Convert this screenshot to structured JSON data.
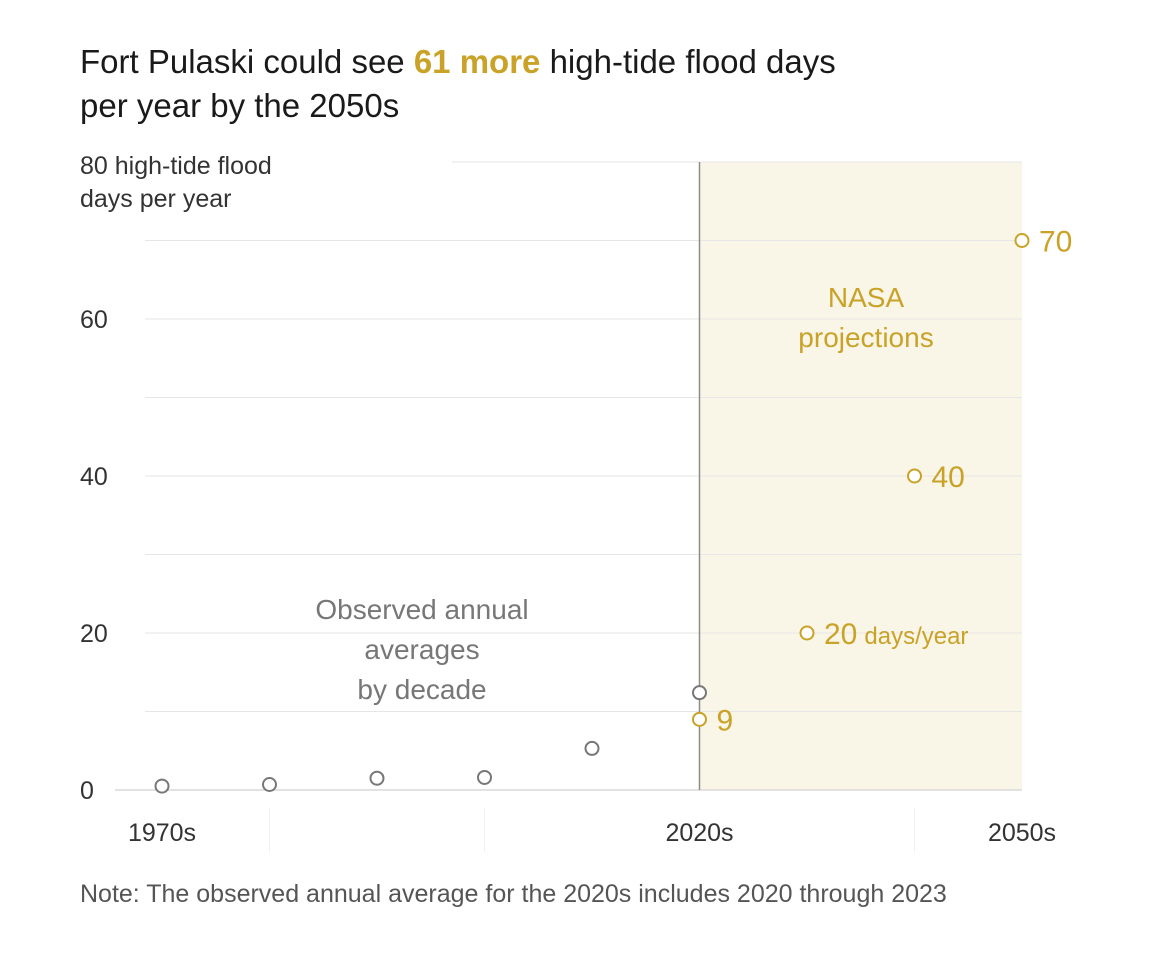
{
  "title": {
    "before": "Fort Pulaski could see ",
    "highlight": "61 more",
    "after": " high-tide flood days",
    "line2": "per year by the 2050s"
  },
  "note": "Note: The observed annual average for the 2020s includes 2020 through 2023",
  "colors": {
    "observed": "#777777",
    "projection": "#c9a227",
    "projection_band": "#f9f6e7",
    "grid": "#e6e6e6",
    "divider": "#8c8c8c"
  },
  "chart_data": {
    "type": "scatter",
    "ylim": [
      0,
      80
    ],
    "y_ticks": [
      0,
      20,
      40,
      60,
      80
    ],
    "y_tick_labels": [
      "0",
      "20",
      "40",
      "60",
      "80"
    ],
    "y_unit_label": [
      "high-tide flood",
      "days per year"
    ],
    "x_ticks": [
      "1970s",
      "2020s",
      "2050s"
    ],
    "series": [
      {
        "name": "Observed annual averages by decade",
        "label_lines": [
          "Observed annual",
          "averages",
          "by decade"
        ],
        "points": [
          {
            "x": "1970s",
            "y": 0.5
          },
          {
            "x": "1980s",
            "y": 0.7
          },
          {
            "x": "1990s",
            "y": 1.5
          },
          {
            "x": "2000s",
            "y": 1.6
          },
          {
            "x": "2010s",
            "y": 5.3
          },
          {
            "x": "2020s",
            "y": 12.4
          }
        ]
      },
      {
        "name": "NASA projections",
        "label_lines": [
          "NASA",
          "projections"
        ],
        "points": [
          {
            "x": "2020s",
            "y": 9,
            "label": "9"
          },
          {
            "x": "2030s",
            "y": 20,
            "label": "20",
            "suffix": "days/year"
          },
          {
            "x": "2040s",
            "y": 40,
            "label": "40"
          },
          {
            "x": "2050s",
            "y": 70,
            "label": "70"
          }
        ]
      }
    ]
  }
}
